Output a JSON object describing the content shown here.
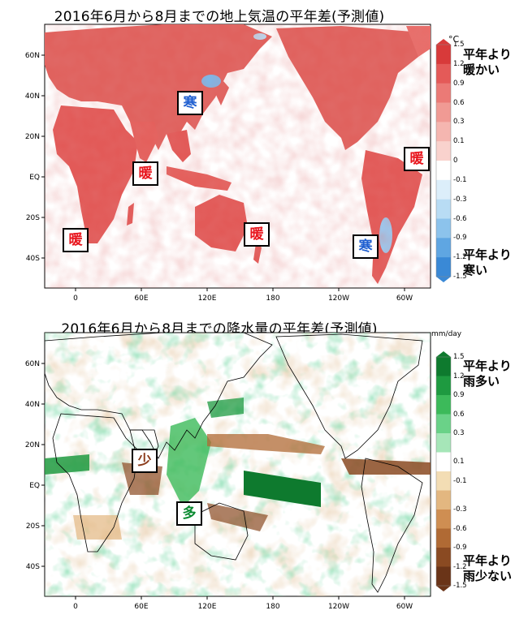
{
  "panels": {
    "temperature": {
      "title": "2016年6月から8月までの地上気温の平年差(予測値)",
      "unit": "°C",
      "legend_top": "平年より\n暖かい",
      "legend_bottom": "平年より\n寒い",
      "colorbar_ticks": [
        "1.5",
        "1.2",
        "0.9",
        "0.6",
        "0.3",
        "0.1",
        "0",
        "-0.1",
        "-0.3",
        "-0.6",
        "-0.9",
        "-1.2",
        "-1.5"
      ],
      "colorbar_colors": [
        "#d83a3a",
        "#e45a58",
        "#eb7a76",
        "#f09a94",
        "#f5b6b0",
        "#f9d2cd",
        "#ffffff",
        "#dceefa",
        "#b8dcf4",
        "#8cc3ec",
        "#5fa6e2",
        "#3a89d6"
      ],
      "annotations": [
        {
          "text": "寒",
          "type": "cold"
        },
        {
          "text": "暖",
          "type": "warm"
        },
        {
          "text": "暖",
          "type": "warm"
        },
        {
          "text": "暖",
          "type": "warm"
        },
        {
          "text": "暖",
          "type": "warm"
        },
        {
          "text": "寒",
          "type": "cold"
        }
      ]
    },
    "precipitation": {
      "title": "2016年6月から8月までの降水量の平年差(予測値)",
      "unit": "mm/day",
      "legend_top": "平年より\n雨多い",
      "legend_bottom": "平年より\n雨少ない",
      "colorbar_ticks": [
        "1.5",
        "1.2",
        "0.9",
        "0.6",
        "0.3",
        "0.1",
        "-0.1",
        "-0.3",
        "-0.6",
        "-0.9",
        "-1.2",
        "-1.5"
      ],
      "colorbar_colors": [
        "#0e7a2e",
        "#1e9a40",
        "#3cba5a",
        "#6ad288",
        "#a6e6b8",
        "#ffffff",
        "#f3ddb4",
        "#e3b780",
        "#cf8e52",
        "#b06a34",
        "#8a4a22",
        "#6a3418"
      ],
      "annotations": [
        {
          "text": "少",
          "type": "dry"
        },
        {
          "text": "多",
          "type": "wet"
        }
      ]
    }
  },
  "axes": {
    "lat_ticks": [
      "60N",
      "40N",
      "20N",
      "EQ",
      "20S",
      "40S"
    ],
    "lon_ticks": [
      "0",
      "60E",
      "120E",
      "180",
      "120W",
      "60W"
    ]
  },
  "legend_placement": "right"
}
